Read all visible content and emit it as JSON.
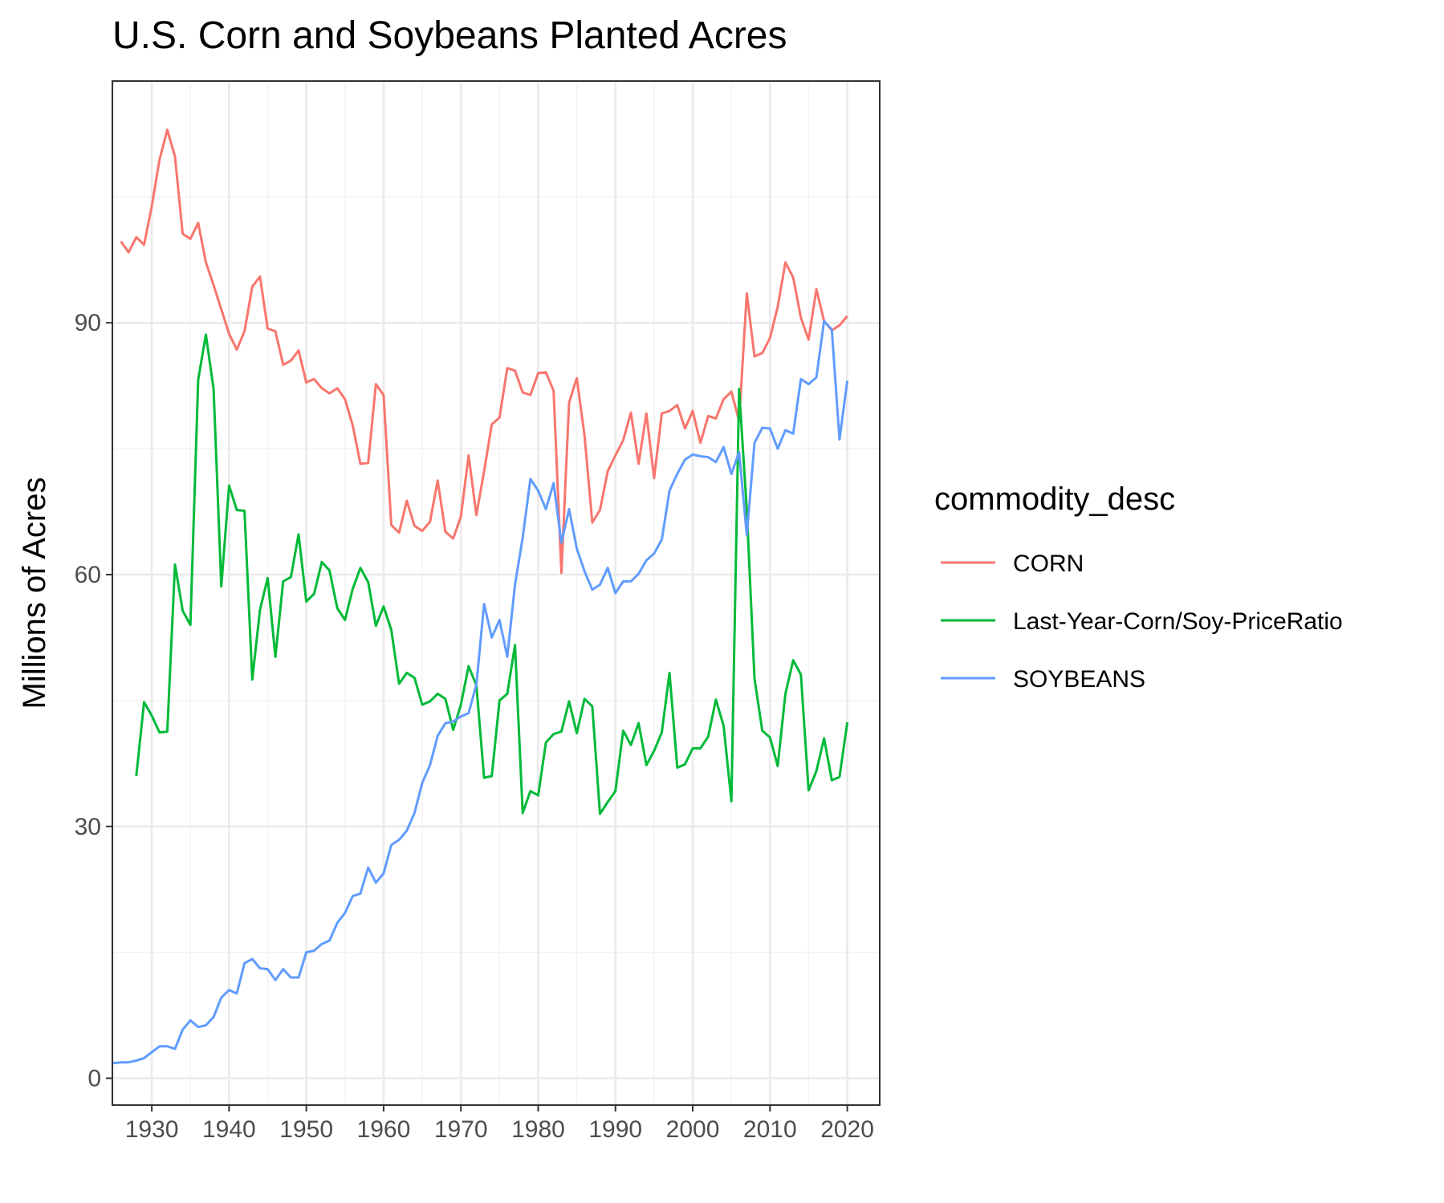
{
  "chart_data": {
    "type": "line",
    "title": "U.S. Corn and Soybeans Planted Acres",
    "xlabel": "",
    "ylabel": "Millions of Acres",
    "xlim": [
      1924.9,
      2024.2
    ],
    "ylim": [
      -3.2,
      118.8
    ],
    "x_ticks": [
      1930,
      1940,
      1950,
      1960,
      1970,
      1980,
      1990,
      2000,
      2010,
      2020
    ],
    "x_ticks_minor": [
      1925,
      1935,
      1945,
      1955,
      1965,
      1975,
      1985,
      1995,
      2005,
      2015
    ],
    "y_ticks": [
      0,
      30,
      60,
      90
    ],
    "y_ticks_minor": [
      15,
      45,
      75,
      105
    ],
    "grid": true,
    "legend": {
      "title": "commodity_desc",
      "position": "right"
    },
    "series": [
      {
        "name": "CORN",
        "color": "#F8766D",
        "points": [
          [
            1926,
            99.7
          ],
          [
            1927,
            98.4
          ],
          [
            1928,
            100.2
          ],
          [
            1929,
            99.3
          ],
          [
            1930,
            103.9
          ],
          [
            1931,
            109.4
          ],
          [
            1932,
            113.0
          ],
          [
            1933,
            109.8
          ],
          [
            1934,
            100.6
          ],
          [
            1935,
            100.0
          ],
          [
            1936,
            101.9
          ],
          [
            1937,
            97.2
          ],
          [
            1938,
            94.5
          ],
          [
            1939,
            91.6
          ],
          [
            1940,
            88.7
          ],
          [
            1941,
            86.8
          ],
          [
            1942,
            89.0
          ],
          [
            1943,
            94.3
          ],
          [
            1944,
            95.5
          ],
          [
            1945,
            89.3
          ],
          [
            1946,
            89.0
          ],
          [
            1947,
            85.0
          ],
          [
            1948,
            85.5
          ],
          [
            1949,
            86.7
          ],
          [
            1950,
            82.9
          ],
          [
            1951,
            83.3
          ],
          [
            1952,
            82.2
          ],
          [
            1953,
            81.6
          ],
          [
            1954,
            82.2
          ],
          [
            1955,
            80.9
          ],
          [
            1956,
            77.8
          ],
          [
            1957,
            73.2
          ],
          [
            1958,
            73.3
          ],
          [
            1959,
            82.7
          ],
          [
            1960,
            81.4
          ],
          [
            1961,
            65.9
          ],
          [
            1962,
            65.0
          ],
          [
            1963,
            68.8
          ],
          [
            1964,
            65.8
          ],
          [
            1965,
            65.2
          ],
          [
            1966,
            66.3
          ],
          [
            1967,
            71.2
          ],
          [
            1968,
            65.1
          ],
          [
            1969,
            64.3
          ],
          [
            1970,
            66.9
          ],
          [
            1971,
            74.2
          ],
          [
            1972,
            67.1
          ],
          [
            1973,
            72.3
          ],
          [
            1974,
            77.9
          ],
          [
            1975,
            78.7
          ],
          [
            1976,
            84.6
          ],
          [
            1977,
            84.3
          ],
          [
            1978,
            81.7
          ],
          [
            1979,
            81.4
          ],
          [
            1980,
            84.0
          ],
          [
            1981,
            84.1
          ],
          [
            1982,
            81.9
          ],
          [
            1983,
            60.2
          ],
          [
            1984,
            80.5
          ],
          [
            1985,
            83.4
          ],
          [
            1986,
            76.6
          ],
          [
            1987,
            66.2
          ],
          [
            1988,
            67.7
          ],
          [
            1989,
            72.3
          ],
          [
            1990,
            74.2
          ],
          [
            1991,
            76.0
          ],
          [
            1992,
            79.3
          ],
          [
            1993,
            73.2
          ],
          [
            1994,
            79.2
          ],
          [
            1995,
            71.5
          ],
          [
            1996,
            79.2
          ],
          [
            1997,
            79.5
          ],
          [
            1998,
            80.2
          ],
          [
            1999,
            77.4
          ],
          [
            2000,
            79.5
          ],
          [
            2001,
            75.7
          ],
          [
            2002,
            78.9
          ],
          [
            2003,
            78.6
          ],
          [
            2004,
            80.9
          ],
          [
            2005,
            81.8
          ],
          [
            2006,
            78.3
          ],
          [
            2007,
            93.5
          ],
          [
            2008,
            86.0
          ],
          [
            2009,
            86.4
          ],
          [
            2010,
            88.2
          ],
          [
            2011,
            91.9
          ],
          [
            2012,
            97.2
          ],
          [
            2013,
            95.4
          ],
          [
            2014,
            90.6
          ],
          [
            2015,
            88.0
          ],
          [
            2016,
            94.0
          ],
          [
            2017,
            90.2
          ],
          [
            2018,
            89.1
          ],
          [
            2019,
            89.7
          ],
          [
            2020,
            90.8
          ]
        ]
      },
      {
        "name": "Last-Year-Corn/Soy-PriceRatio",
        "color": "#00BA38",
        "points": [
          [
            1928,
            36.0
          ],
          [
            1929,
            44.8
          ],
          [
            1930,
            43.2
          ],
          [
            1931,
            41.2
          ],
          [
            1932,
            41.3
          ],
          [
            1933,
            61.2
          ],
          [
            1934,
            55.7
          ],
          [
            1935,
            54.0
          ],
          [
            1936,
            83.2
          ],
          [
            1937,
            88.6
          ],
          [
            1938,
            82.1
          ],
          [
            1939,
            58.6
          ],
          [
            1940,
            70.6
          ],
          [
            1941,
            67.7
          ],
          [
            1942,
            67.6
          ],
          [
            1943,
            47.5
          ],
          [
            1944,
            55.8
          ],
          [
            1945,
            59.6
          ],
          [
            1946,
            50.2
          ],
          [
            1947,
            59.2
          ],
          [
            1948,
            59.7
          ],
          [
            1949,
            64.8
          ],
          [
            1950,
            56.8
          ],
          [
            1951,
            57.7
          ],
          [
            1952,
            61.5
          ],
          [
            1953,
            60.5
          ],
          [
            1954,
            56.0
          ],
          [
            1955,
            54.6
          ],
          [
            1956,
            58.3
          ],
          [
            1957,
            60.8
          ],
          [
            1958,
            59.1
          ],
          [
            1959,
            53.9
          ],
          [
            1960,
            56.2
          ],
          [
            1961,
            53.4
          ],
          [
            1962,
            47.0
          ],
          [
            1963,
            48.3
          ],
          [
            1964,
            47.7
          ],
          [
            1965,
            44.5
          ],
          [
            1966,
            44.9
          ],
          [
            1967,
            45.8
          ],
          [
            1968,
            45.2
          ],
          [
            1969,
            41.5
          ],
          [
            1970,
            44.5
          ],
          [
            1971,
            49.1
          ],
          [
            1972,
            46.8
          ],
          [
            1973,
            35.8
          ],
          [
            1974,
            36.0
          ],
          [
            1975,
            45.0
          ],
          [
            1976,
            45.8
          ],
          [
            1977,
            51.6
          ],
          [
            1978,
            31.6
          ],
          [
            1979,
            34.2
          ],
          [
            1980,
            33.7
          ],
          [
            1981,
            40.0
          ],
          [
            1982,
            41.0
          ],
          [
            1983,
            41.3
          ],
          [
            1984,
            44.9
          ],
          [
            1985,
            41.1
          ],
          [
            1986,
            45.2
          ],
          [
            1987,
            44.3
          ],
          [
            1988,
            31.5
          ],
          [
            1989,
            32.9
          ],
          [
            1990,
            34.2
          ],
          [
            1991,
            41.4
          ],
          [
            1992,
            39.7
          ],
          [
            1993,
            42.3
          ],
          [
            1994,
            37.3
          ],
          [
            1995,
            39.0
          ],
          [
            1996,
            41.2
          ],
          [
            1997,
            48.3
          ],
          [
            1998,
            37.0
          ],
          [
            1999,
            37.4
          ],
          [
            2000,
            39.3
          ],
          [
            2001,
            39.3
          ],
          [
            2002,
            40.7
          ],
          [
            2003,
            45.1
          ],
          [
            2004,
            42.0
          ],
          [
            2005,
            33.0
          ],
          [
            2006,
            82.1
          ],
          [
            2007,
            67.7
          ],
          [
            2008,
            47.6
          ],
          [
            2009,
            41.4
          ],
          [
            2010,
            40.6
          ],
          [
            2011,
            37.2
          ],
          [
            2012,
            45.8
          ],
          [
            2013,
            49.8
          ],
          [
            2014,
            48.1
          ],
          [
            2015,
            34.3
          ],
          [
            2016,
            36.6
          ],
          [
            2017,
            40.5
          ],
          [
            2018,
            35.5
          ],
          [
            2019,
            35.9
          ],
          [
            2020,
            42.4
          ]
        ]
      },
      {
        "name": "SOYBEANS",
        "color": "#619CFF",
        "points": [
          [
            1925,
            1.8
          ],
          [
            1926,
            1.9
          ],
          [
            1927,
            1.9
          ],
          [
            1928,
            2.1
          ],
          [
            1929,
            2.4
          ],
          [
            1930,
            3.1
          ],
          [
            1931,
            3.8
          ],
          [
            1932,
            3.8
          ],
          [
            1933,
            3.5
          ],
          [
            1934,
            5.8
          ],
          [
            1935,
            6.9
          ],
          [
            1936,
            6.1
          ],
          [
            1937,
            6.3
          ],
          [
            1938,
            7.3
          ],
          [
            1939,
            9.6
          ],
          [
            1940,
            10.5
          ],
          [
            1941,
            10.1
          ],
          [
            1942,
            13.7
          ],
          [
            1943,
            14.2
          ],
          [
            1944,
            13.1
          ],
          [
            1945,
            13.0
          ],
          [
            1946,
            11.7
          ],
          [
            1947,
            13.0
          ],
          [
            1948,
            12.0
          ],
          [
            1949,
            12.0
          ],
          [
            1950,
            15.0
          ],
          [
            1951,
            15.2
          ],
          [
            1952,
            16.0
          ],
          [
            1953,
            16.4
          ],
          [
            1954,
            18.5
          ],
          [
            1955,
            19.7
          ],
          [
            1956,
            21.7
          ],
          [
            1957,
            22.0
          ],
          [
            1958,
            25.1
          ],
          [
            1959,
            23.3
          ],
          [
            1960,
            24.4
          ],
          [
            1961,
            27.8
          ],
          [
            1962,
            28.4
          ],
          [
            1963,
            29.5
          ],
          [
            1964,
            31.6
          ],
          [
            1965,
            35.2
          ],
          [
            1966,
            37.3
          ],
          [
            1967,
            40.8
          ],
          [
            1968,
            42.3
          ],
          [
            1969,
            42.5
          ],
          [
            1970,
            43.1
          ],
          [
            1971,
            43.5
          ],
          [
            1972,
            46.9
          ],
          [
            1973,
            56.5
          ],
          [
            1974,
            52.5
          ],
          [
            1975,
            54.6
          ],
          [
            1976,
            50.2
          ],
          [
            1977,
            58.8
          ],
          [
            1978,
            64.4
          ],
          [
            1979,
            71.4
          ],
          [
            1980,
            70.0
          ],
          [
            1981,
            67.8
          ],
          [
            1982,
            70.9
          ],
          [
            1983,
            63.8
          ],
          [
            1984,
            67.8
          ],
          [
            1985,
            63.1
          ],
          [
            1986,
            60.4
          ],
          [
            1987,
            58.2
          ],
          [
            1988,
            58.8
          ],
          [
            1989,
            60.8
          ],
          [
            1990,
            57.8
          ],
          [
            1991,
            59.2
          ],
          [
            1992,
            59.2
          ],
          [
            1993,
            60.1
          ],
          [
            1994,
            61.7
          ],
          [
            1995,
            62.5
          ],
          [
            1996,
            64.2
          ],
          [
            1997,
            70.0
          ],
          [
            1998,
            72.0
          ],
          [
            1999,
            73.7
          ],
          [
            2000,
            74.3
          ],
          [
            2001,
            74.1
          ],
          [
            2002,
            74.0
          ],
          [
            2003,
            73.4
          ],
          [
            2004,
            75.2
          ],
          [
            2005,
            72.0
          ],
          [
            2006,
            74.6
          ],
          [
            2007,
            64.7
          ],
          [
            2008,
            75.7
          ],
          [
            2009,
            77.5
          ],
          [
            2010,
            77.4
          ],
          [
            2011,
            75.0
          ],
          [
            2012,
            77.2
          ],
          [
            2013,
            76.8
          ],
          [
            2014,
            83.3
          ],
          [
            2015,
            82.7
          ],
          [
            2016,
            83.5
          ],
          [
            2017,
            90.2
          ],
          [
            2018,
            89.2
          ],
          [
            2019,
            76.1
          ],
          [
            2020,
            83.1
          ]
        ]
      }
    ]
  }
}
